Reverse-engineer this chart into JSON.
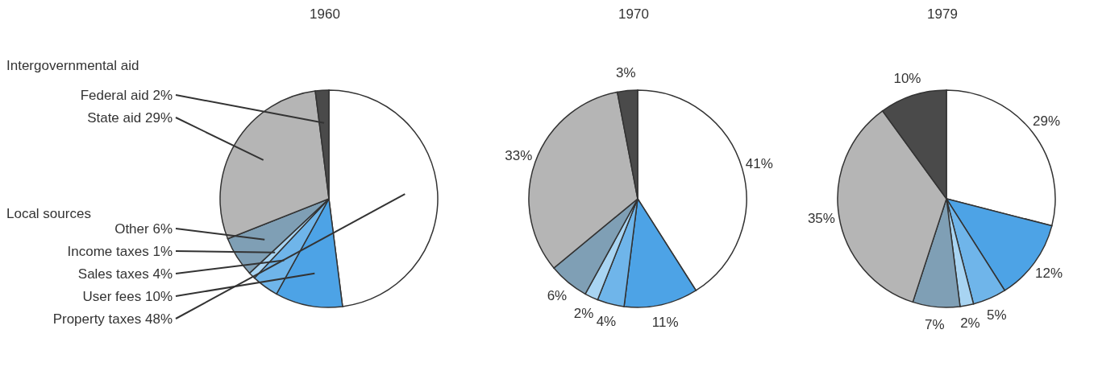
{
  "chart_data": [
    {
      "type": "pie",
      "title": "1960",
      "categories": [
        "Property taxes",
        "User fees",
        "Sales taxes",
        "Income taxes",
        "Other",
        "State aid",
        "Federal aid"
      ],
      "values": [
        48,
        10,
        4,
        1,
        6,
        29,
        2
      ],
      "value_labels": [
        "48%",
        "10%",
        "4%",
        "1%",
        "6%",
        "29%",
        "2%"
      ],
      "colors": [
        "#ffffff",
        "#4da3e6",
        "#6fb5ea",
        "#a8d4f2",
        "#7f9fb5",
        "#b5b5b5",
        "#4a4a4a"
      ],
      "annotations": [
        "Intergovernmental aid",
        "Local sources"
      ]
    },
    {
      "type": "pie",
      "title": "1970",
      "categories": [
        null,
        null,
        null,
        null,
        null,
        null,
        null
      ],
      "values": [
        41,
        11,
        4,
        2,
        6,
        33,
        3
      ],
      "value_labels": [
        "41%",
        "11%",
        "4%",
        "2%",
        "6%",
        "33%",
        "3%"
      ],
      "colors": [
        "#ffffff",
        "#4da3e6",
        "#6fb5ea",
        "#a8d4f2",
        "#7f9fb5",
        "#b5b5b5",
        "#4a4a4a"
      ]
    },
    {
      "type": "pie",
      "title": "1979",
      "categories": [
        null,
        null,
        null,
        null,
        null,
        null,
        null
      ],
      "values": [
        29,
        12,
        5,
        2,
        7,
        35,
        10
      ],
      "value_labels": [
        "29%",
        "12%",
        "5%",
        "2%",
        "7%",
        "35%",
        "10%"
      ],
      "colors": [
        "#ffffff",
        "#4da3e6",
        "#6fb5ea",
        "#a8d4f2",
        "#7f9fb5",
        "#b5b5b5",
        "#4a4a4a"
      ]
    }
  ]
}
